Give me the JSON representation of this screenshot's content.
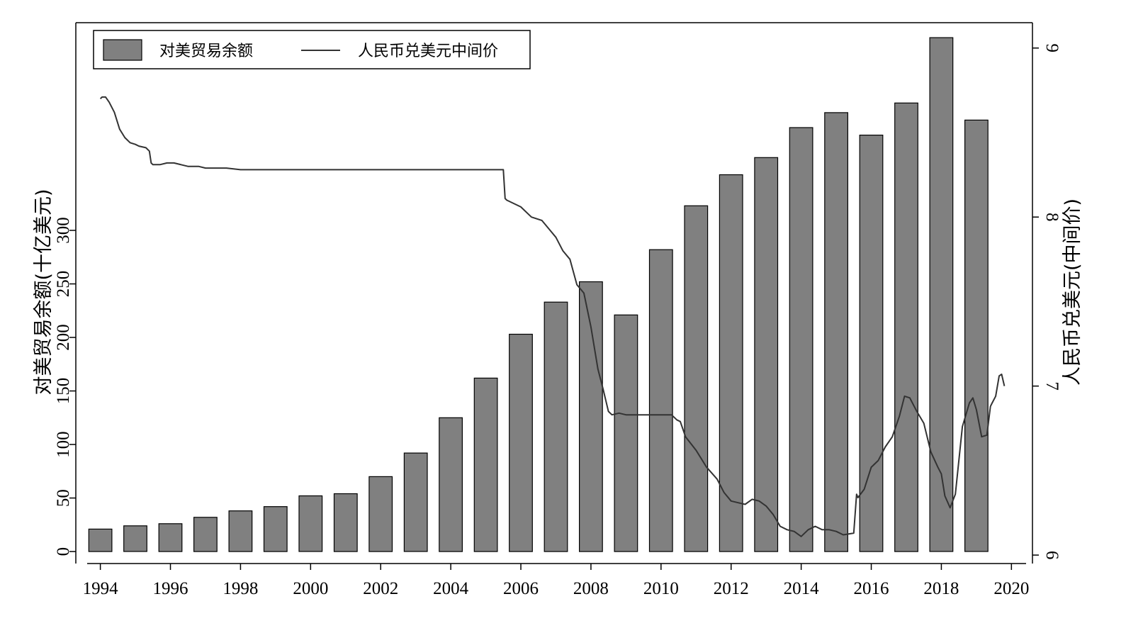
{
  "chart_data": {
    "type": "bar",
    "xlabel": "",
    "ylabel_left": "对美贸易余额(十亿美元)",
    "ylabel_right": "人民币兑美元(中间价)",
    "xlim": [
      1993.3,
      2020.6
    ],
    "ylim_left": [
      -11.2,
      494
    ],
    "ylim_right": [
      5.95,
      9.15
    ],
    "x_ticks": [
      1994,
      1996,
      1998,
      2000,
      2002,
      2004,
      2006,
      2008,
      2010,
      2012,
      2014,
      2016,
      2018,
      2020
    ],
    "x_tick_labels": [
      "1994",
      "1996",
      "1998",
      "2000",
      "2002",
      "2004",
      "2006",
      "2008",
      "2010",
      "2012",
      "2014",
      "2016",
      "2018",
      "2020"
    ],
    "y_left_ticks": [
      0,
      50,
      100,
      150,
      200,
      250,
      300
    ],
    "y_left_tick_labels": [
      "0",
      "50",
      "100",
      "150",
      "200",
      "250",
      "300"
    ],
    "y_right_ticks": [
      6,
      7,
      8,
      9
    ],
    "y_right_tick_labels": [
      "6",
      "7",
      "8",
      "9"
    ],
    "grid": false,
    "legend_position": "top-left",
    "legend": [
      {
        "label": "对美贸易余额",
        "kind": "bar"
      },
      {
        "label": "人民币兑美元中间价",
        "kind": "line"
      }
    ],
    "colors": {
      "bar": "#808080",
      "line": "#333333",
      "axis": "#000000"
    },
    "series": [
      {
        "name": "对美贸易余额",
        "kind": "bar",
        "axis": "left",
        "x": [
          1994,
          1995,
          1996,
          1997,
          1998,
          1999,
          2000,
          2001,
          2002,
          2003,
          2004,
          2005,
          2006,
          2007,
          2008,
          2009,
          2010,
          2011,
          2012,
          2013,
          2014,
          2015,
          2016,
          2017,
          2018,
          2019
        ],
        "values": [
          21,
          24,
          26,
          32,
          38,
          42,
          52,
          54,
          70,
          92,
          125,
          162,
          203,
          233,
          252,
          221,
          282,
          323,
          352,
          368,
          396,
          410,
          389,
          419,
          480,
          403
        ]
      },
      {
        "name": "人民币兑美元中间价",
        "kind": "line",
        "axis": "right",
        "x": [
          1994.0,
          1994.05,
          1994.15,
          1994.25,
          1994.4,
          1994.55,
          1994.7,
          1994.85,
          1995.0,
          1995.1,
          1995.3,
          1995.4,
          1995.45,
          1995.5,
          1995.7,
          1995.9,
          1996.1,
          1996.3,
          1996.5,
          1996.8,
          1997.0,
          1997.3,
          1997.6,
          1998.0,
          1998.5,
          1999.0,
          2000.0,
          2001.0,
          2002.0,
          2003.0,
          2004.0,
          2005.0,
          2005.5,
          2005.55,
          2005.6,
          2005.8,
          2006.0,
          2006.3,
          2006.6,
          2006.8,
          2007.0,
          2007.2,
          2007.4,
          2007.6,
          2007.8,
          2008.0,
          2008.2,
          2008.35,
          2008.5,
          2008.6,
          2008.8,
          2009.0,
          2009.5,
          2010.0,
          2010.3,
          2010.45,
          2010.55,
          2010.7,
          2010.85,
          2011.0,
          2011.3,
          2011.6,
          2011.8,
          2012.0,
          2012.2,
          2012.4,
          2012.6,
          2012.8,
          2013.0,
          2013.2,
          2013.4,
          2013.6,
          2013.8,
          2014.0,
          2014.2,
          2014.4,
          2014.6,
          2014.8,
          2015.0,
          2015.2,
          2015.5,
          2015.58,
          2015.62,
          2015.8,
          2016.0,
          2016.2,
          2016.4,
          2016.6,
          2016.8,
          2016.95,
          2017.1,
          2017.3,
          2017.5,
          2017.7,
          2017.9,
          2018.0,
          2018.1,
          2018.25,
          2018.4,
          2018.6,
          2018.8,
          2018.9,
          2019.0,
          2019.15,
          2019.3,
          2019.4,
          2019.45,
          2019.55,
          2019.65,
          2019.72,
          2019.8
        ],
        "values": [
          8.7,
          8.71,
          8.71,
          8.68,
          8.62,
          8.52,
          8.47,
          8.44,
          8.43,
          8.42,
          8.41,
          8.39,
          8.32,
          8.31,
          8.31,
          8.32,
          8.32,
          8.31,
          8.3,
          8.3,
          8.29,
          8.29,
          8.29,
          8.28,
          8.28,
          8.28,
          8.28,
          8.28,
          8.28,
          8.28,
          8.28,
          8.28,
          8.28,
          8.11,
          8.1,
          8.08,
          8.06,
          8.0,
          7.98,
          7.93,
          7.88,
          7.8,
          7.75,
          7.6,
          7.55,
          7.35,
          7.1,
          6.98,
          6.85,
          6.83,
          6.84,
          6.83,
          6.83,
          6.83,
          6.83,
          6.8,
          6.79,
          6.7,
          6.66,
          6.62,
          6.52,
          6.45,
          6.37,
          6.32,
          6.31,
          6.3,
          6.33,
          6.32,
          6.29,
          6.24,
          6.17,
          6.15,
          6.14,
          6.11,
          6.15,
          6.17,
          6.15,
          6.15,
          6.14,
          6.12,
          6.13,
          6.36,
          6.34,
          6.39,
          6.52,
          6.56,
          6.64,
          6.7,
          6.82,
          6.94,
          6.93,
          6.85,
          6.78,
          6.61,
          6.52,
          6.48,
          6.35,
          6.28,
          6.36,
          6.76,
          6.9,
          6.93,
          6.86,
          6.7,
          6.71,
          6.88,
          6.9,
          6.94,
          7.06,
          7.07,
          7.0
        ]
      }
    ]
  }
}
